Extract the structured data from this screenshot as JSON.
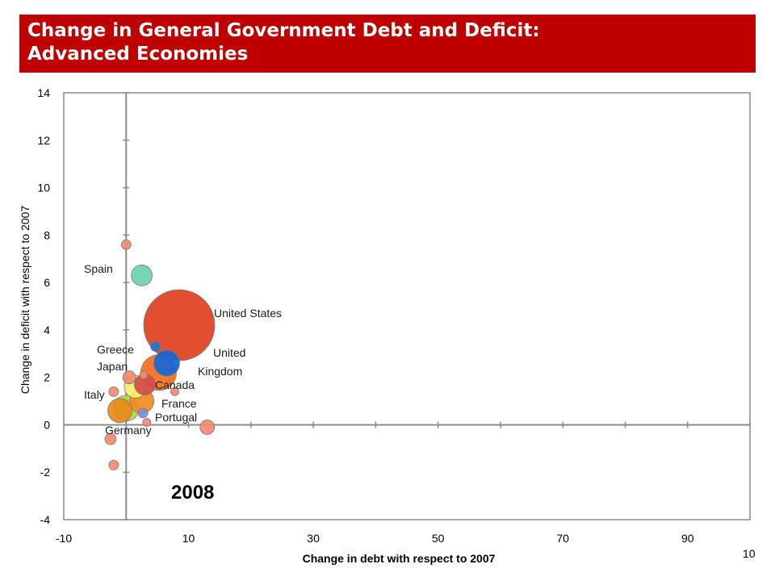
{
  "slide": {
    "title_line1": "Change in General Government Debt and Deficit:",
    "title_line2": "Advanced Economies",
    "page_number": "10"
  },
  "chart_data": {
    "type": "scatter",
    "title": "",
    "xlabel": "Change in debt with respect to 2007",
    "ylabel": "Change in deficit with respect to 2007",
    "xlim": [
      -10,
      100
    ],
    "ylim": [
      -4,
      14
    ],
    "xticks": [
      -10,
      10,
      30,
      50,
      70,
      90
    ],
    "yticks": [
      -4,
      -2,
      0,
      2,
      4,
      6,
      8,
      10,
      12,
      14
    ],
    "bubble_size": "relative economy size",
    "year_annotation": "2008",
    "points": [
      {
        "x": 8.5,
        "y": 4.2,
        "size": 44,
        "color": "#e0401e",
        "label": "United States"
      },
      {
        "x": 6.5,
        "y": 2.6,
        "size": 16,
        "color": "#1565d8",
        "label": "United Kingdom"
      },
      {
        "x": 5.2,
        "y": 2.2,
        "size": 22,
        "color": "#f26f1a",
        "label": ""
      },
      {
        "x": 3.0,
        "y": 1.7,
        "size": 13,
        "color": "#d44a4a",
        "label": "Canada"
      },
      {
        "x": 1.5,
        "y": 1.6,
        "size": 14,
        "color": "#f8ef6a",
        "label": ""
      },
      {
        "x": 2.5,
        "y": 1.0,
        "size": 15,
        "color": "#f58a1f",
        "label": "France"
      },
      {
        "x": 0.0,
        "y": 0.7,
        "size": 16,
        "color": "#b4d44a",
        "label": ""
      },
      {
        "x": -1.0,
        "y": 0.6,
        "size": 15,
        "color": "#eb8a1a",
        "label": "Germany"
      },
      {
        "x": 2.7,
        "y": 0.5,
        "size": 6,
        "color": "#7a8fd8",
        "label": "Portugal"
      },
      {
        "x": 2.5,
        "y": 6.3,
        "size": 13,
        "color": "#6ecfb0",
        "label": "Spain"
      },
      {
        "x": 4.7,
        "y": 3.3,
        "size": 6,
        "color": "#1e78d8",
        "label": "Greece"
      },
      {
        "x": 0.5,
        "y": 2.0,
        "size": 8,
        "color": "#f28a6e",
        "label": "Japan"
      },
      {
        "x": -2.0,
        "y": 1.4,
        "size": 6,
        "color": "#f28a6e",
        "label": "Italy"
      },
      {
        "x": 0.0,
        "y": 7.6,
        "size": 6,
        "color": "#f28a6e",
        "label": ""
      },
      {
        "x": 13.0,
        "y": -0.1,
        "size": 9,
        "color": "#f28a6e",
        "label": ""
      },
      {
        "x": -2.5,
        "y": -0.6,
        "size": 7,
        "color": "#f28a6e",
        "label": ""
      },
      {
        "x": -2.0,
        "y": -1.7,
        "size": 6,
        "color": "#f28a6e",
        "label": ""
      },
      {
        "x": 7.8,
        "y": 1.4,
        "size": 5,
        "color": "#f28a6e",
        "label": ""
      },
      {
        "x": 3.3,
        "y": 0.1,
        "size": 5,
        "color": "#f28a6e",
        "label": ""
      },
      {
        "x": 2.8,
        "y": 2.1,
        "size": 5,
        "color": "#f28a6e",
        "label": ""
      }
    ]
  }
}
